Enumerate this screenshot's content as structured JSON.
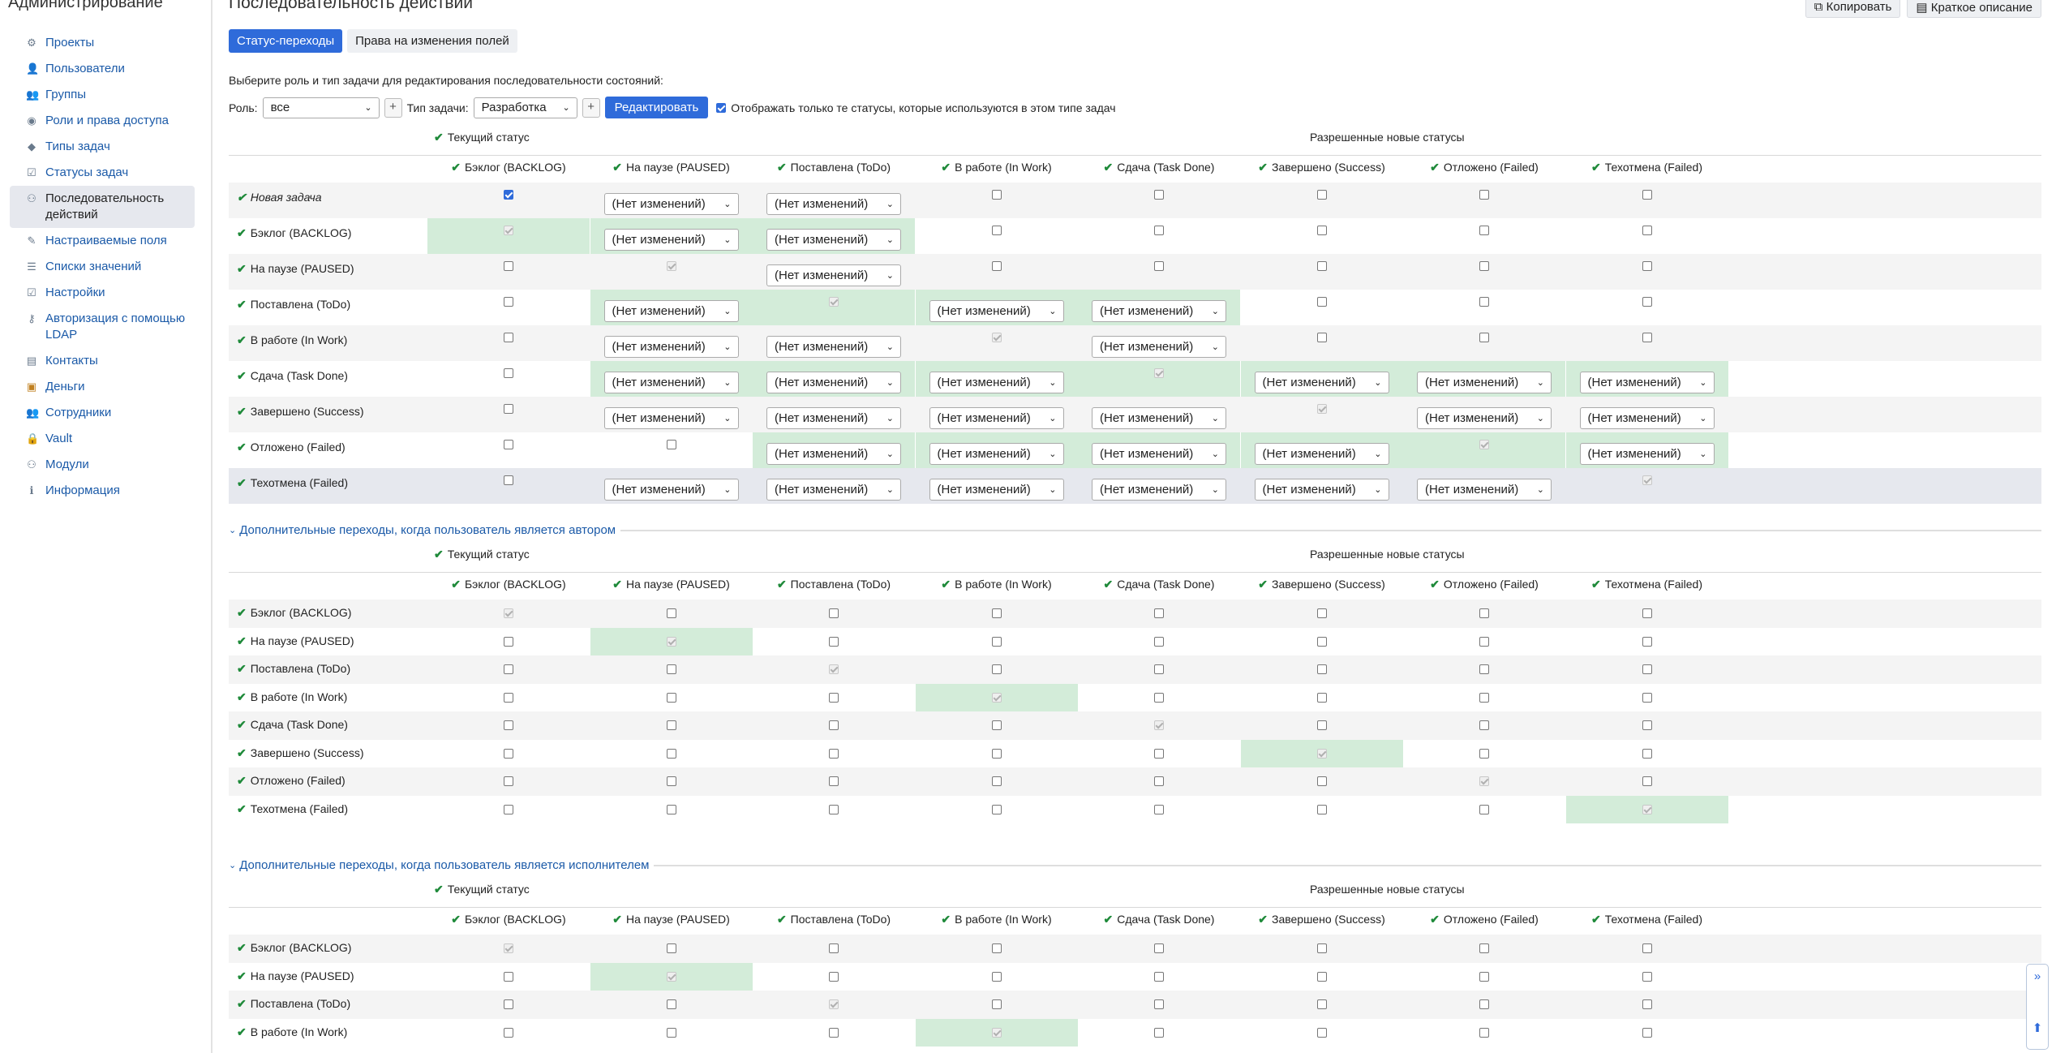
{
  "sidebar": {
    "title": "Администрирование",
    "items": [
      {
        "label": "Проекты",
        "icon": "projects-icon",
        "glyph": "⚙"
      },
      {
        "label": "Пользователи",
        "icon": "user-icon",
        "glyph": "👤"
      },
      {
        "label": "Группы",
        "icon": "group-icon",
        "glyph": "👥"
      },
      {
        "label": "Роли и права доступа",
        "icon": "eye-icon",
        "glyph": "◉"
      },
      {
        "label": "Типы задач",
        "icon": "tag-icon",
        "glyph": "◆"
      },
      {
        "label": "Статусы задач",
        "icon": "status-icon",
        "glyph": "☑"
      },
      {
        "label": "Последовательность действий",
        "icon": "workflow-icon",
        "glyph": "⚇"
      },
      {
        "label": "Настраиваемые поля",
        "icon": "edit-icon",
        "glyph": "✎"
      },
      {
        "label": "Списки значений",
        "icon": "list-icon",
        "glyph": "☰"
      },
      {
        "label": "Настройки",
        "icon": "settings-icon",
        "glyph": "☑"
      },
      {
        "label": "Авторизация с помощью LDAP",
        "icon": "key-icon",
        "glyph": "⚷"
      },
      {
        "label": "Контакты",
        "icon": "contacts-icon",
        "glyph": "▤"
      },
      {
        "label": "Деньги",
        "icon": "money-icon",
        "glyph": "▣"
      },
      {
        "label": "Сотрудники",
        "icon": "employees-icon",
        "glyph": "👥"
      },
      {
        "label": "Vault",
        "icon": "lock-icon",
        "glyph": "🔒"
      },
      {
        "label": "Модули",
        "icon": "modules-icon",
        "glyph": "⚇"
      },
      {
        "label": "Информация",
        "icon": "info-icon",
        "glyph": "ℹ"
      }
    ],
    "active_index": 6
  },
  "page": {
    "title": "Последовательность действий",
    "copy_label": "Копировать",
    "summary_label": "Краткое описание",
    "tabs": [
      "Статус-переходы",
      "Права на изменения полей"
    ],
    "hint": "Выберите роль и тип задачи для редактирования последовательности состояний:",
    "role_label": "Роль:",
    "role_value": "все",
    "tracker_label": "Тип задачи:",
    "tracker_value": "Разработка",
    "edit_button": "Редактировать",
    "used_only_label": "Отображать только те статусы, которые используются в этом типе задач",
    "plus": "+"
  },
  "labels": {
    "current_status": "Текущий статус",
    "allowed_statuses": "Разрешенные новые статусы",
    "no_change": "(Нет изменений)",
    "author_section": "Дополнительные переходы, когда пользователь является автором",
    "assignee_section": "Дополнительные переходы, когда пользователь является исполнителем"
  },
  "statuses": [
    "Бэклог (BACKLOG)",
    "На паузе (PAUSED)",
    "Поставлена (ToDo)",
    "В работе (In Work)",
    "Сдача (Task Done)",
    "Завершено (Success)",
    "Отложено (Failed)",
    "Техотмена (Failed)"
  ],
  "main_rows": [
    {
      "label": "Новая задача",
      "italic": true,
      "cells": [
        "c",
        "s",
        "s",
        "u",
        "u",
        "u",
        "u",
        "u"
      ],
      "green": []
    },
    {
      "label": "Бэклог (BACKLOG)",
      "cells": [
        "d",
        "s",
        "s",
        "u",
        "u",
        "u",
        "u",
        "u"
      ],
      "green": [
        0,
        1,
        2
      ]
    },
    {
      "label": "На паузе (PAUSED)",
      "cells": [
        "u",
        "d",
        "s",
        "u",
        "u",
        "u",
        "u",
        "u"
      ],
      "green": []
    },
    {
      "label": "Поставлена (ToDo)",
      "cells": [
        "u",
        "s",
        "d",
        "s",
        "s",
        "u",
        "u",
        "u"
      ],
      "green": [
        1,
        2,
        3,
        4
      ]
    },
    {
      "label": "В работе (In Work)",
      "cells": [
        "u",
        "s",
        "s",
        "d",
        "s",
        "u",
        "u",
        "u"
      ],
      "green": []
    },
    {
      "label": "Сдача (Task Done)",
      "cells": [
        "u",
        "s",
        "s",
        "s",
        "d",
        "s",
        "s",
        "s"
      ],
      "green": [
        1,
        2,
        3,
        4,
        5,
        6,
        7
      ]
    },
    {
      "label": "Завершено (Success)",
      "cells": [
        "u",
        "s",
        "s",
        "s",
        "s",
        "d",
        "s",
        "s"
      ],
      "green": []
    },
    {
      "label": "Отложено (Failed)",
      "cells": [
        "u",
        "u",
        "s",
        "s",
        "s",
        "s",
        "d",
        "s"
      ],
      "green": [
        2,
        3,
        4,
        5,
        6,
        7
      ]
    },
    {
      "label": "Техотмена (Failed)",
      "cells": [
        "u",
        "s",
        "s",
        "s",
        "s",
        "s",
        "s",
        "d"
      ],
      "green": [],
      "highlight": true
    }
  ],
  "author_rows": [
    {
      "label": "Бэклог (BACKLOG)",
      "diag": 0
    },
    {
      "label": "На паузе (PAUSED)",
      "diag": 1
    },
    {
      "label": "Поставлена (ToDo)",
      "diag": 2
    },
    {
      "label": "В работе (In Work)",
      "diag": 3
    },
    {
      "label": "Сдача (Task Done)",
      "diag": 4
    },
    {
      "label": "Завершено (Success)",
      "diag": 5
    },
    {
      "label": "Отложено (Failed)",
      "diag": 6
    },
    {
      "label": "Техотмена (Failed)",
      "diag": 7
    }
  ],
  "assignee_rows": [
    {
      "label": "Бэклог (BACKLOG)",
      "diag": 0
    },
    {
      "label": "На паузе (PAUSED)",
      "diag": 1
    },
    {
      "label": "Поставлена (ToDo)",
      "diag": 2
    },
    {
      "label": "В работе (In Work)",
      "diag": 3
    }
  ],
  "scroll": {
    "expand_glyph": "»",
    "top_glyph": "⬆"
  }
}
